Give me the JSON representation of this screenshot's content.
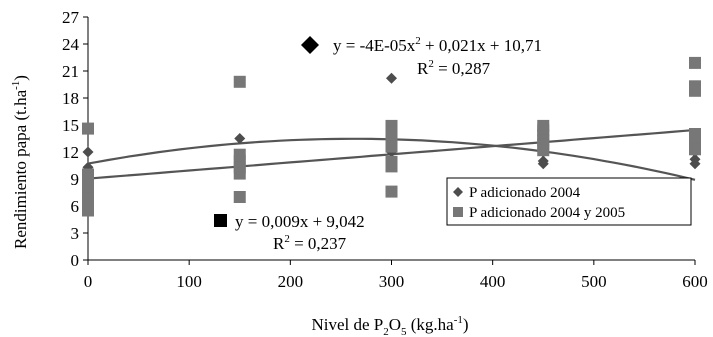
{
  "chart_data": {
    "type": "scatter",
    "title": "",
    "xlabel": {
      "prefix": "Nivel de P",
      "sub": "2",
      "mid": "O",
      "sub2": "5",
      "suffix": " (kg.ha",
      "sup": "-1",
      "end": ")"
    },
    "ylabel": {
      "prefix": "Rendimiento papa (t.ha",
      "sup": "-1",
      "suffix": ")"
    },
    "xlim": [
      0,
      600
    ],
    "ylim": [
      0,
      27
    ],
    "xticks": [
      0,
      100,
      200,
      300,
      400,
      500,
      600
    ],
    "yticks": [
      0,
      3,
      6,
      9,
      12,
      15,
      18,
      21,
      24,
      27
    ],
    "grid": false,
    "legend_position": "right-center",
    "series": [
      {
        "name": "P adicionado 2004",
        "marker": "diamond",
        "color": "#4d4d4d",
        "points": [
          [
            0,
            12.0
          ],
          [
            0,
            10.3
          ],
          [
            0,
            8.2
          ],
          [
            0,
            7.5
          ],
          [
            150,
            13.5
          ],
          [
            150,
            10.5
          ],
          [
            300,
            20.2
          ],
          [
            300,
            13.7
          ],
          [
            300,
            12.0
          ],
          [
            450,
            13.2
          ],
          [
            450,
            11.0
          ],
          [
            450,
            10.7
          ],
          [
            450,
            12.0
          ],
          [
            600,
            13.0
          ],
          [
            600,
            11.2
          ],
          [
            600,
            10.7
          ],
          [
            600,
            12.0
          ]
        ],
        "trendline": {
          "type": "polynomial",
          "a": -4e-05,
          "b": 0.021,
          "c": 10.71,
          "equation": "y = -4E-05x² + 0,021x + 10,71",
          "r2": "R² = 0,287"
        }
      },
      {
        "name": "P adicionado 2004 y 2005",
        "marker": "square",
        "color": "#777777",
        "points": [
          [
            0,
            14.6
          ],
          [
            0,
            9.5
          ],
          [
            0,
            9.0
          ],
          [
            0,
            8.0
          ],
          [
            0,
            7.4
          ],
          [
            0,
            6.8
          ],
          [
            0,
            6.2
          ],
          [
            0,
            5.5
          ],
          [
            150,
            19.8
          ],
          [
            150,
            11.7
          ],
          [
            150,
            11.0
          ],
          [
            150,
            10.3
          ],
          [
            150,
            9.6
          ],
          [
            150,
            7.0
          ],
          [
            300,
            14.9
          ],
          [
            300,
            14.3
          ],
          [
            300,
            13.6
          ],
          [
            300,
            12.6
          ],
          [
            300,
            10.9
          ],
          [
            300,
            10.4
          ],
          [
            300,
            7.6
          ],
          [
            450,
            14.9
          ],
          [
            450,
            14.4
          ],
          [
            450,
            13.9
          ],
          [
            450,
            13.3
          ],
          [
            450,
            12.8
          ],
          [
            450,
            12.2
          ],
          [
            600,
            21.9
          ],
          [
            600,
            19.3
          ],
          [
            600,
            18.8
          ],
          [
            600,
            14.0
          ],
          [
            600,
            13.5
          ],
          [
            600,
            12.9
          ],
          [
            600,
            12.3
          ]
        ],
        "trendline": {
          "type": "linear",
          "m": 0.009,
          "b": 9.042,
          "equation": "y = 0,009x + 9,042",
          "r2": "R² = 0,237"
        }
      }
    ],
    "annotations": [
      {
        "series": 0,
        "equation": "y = -4E-05x² + 0,021x + 10,71",
        "r2_prefix": "R",
        "r2_sup": "2",
        "r2_value": " = 0,287"
      },
      {
        "series": 1,
        "equation": "y = 0,009x + 9,042",
        "r2_prefix": "R",
        "r2_sup": "2",
        "r2_value": " = 0,237"
      }
    ],
    "equation_parts": {
      "poly": {
        "a": "y = -4E-05x",
        "sup": "2",
        "b": " + 0,021x + 10,71"
      },
      "lin": {
        "a": "y = 0,009x + 9,042"
      }
    }
  }
}
